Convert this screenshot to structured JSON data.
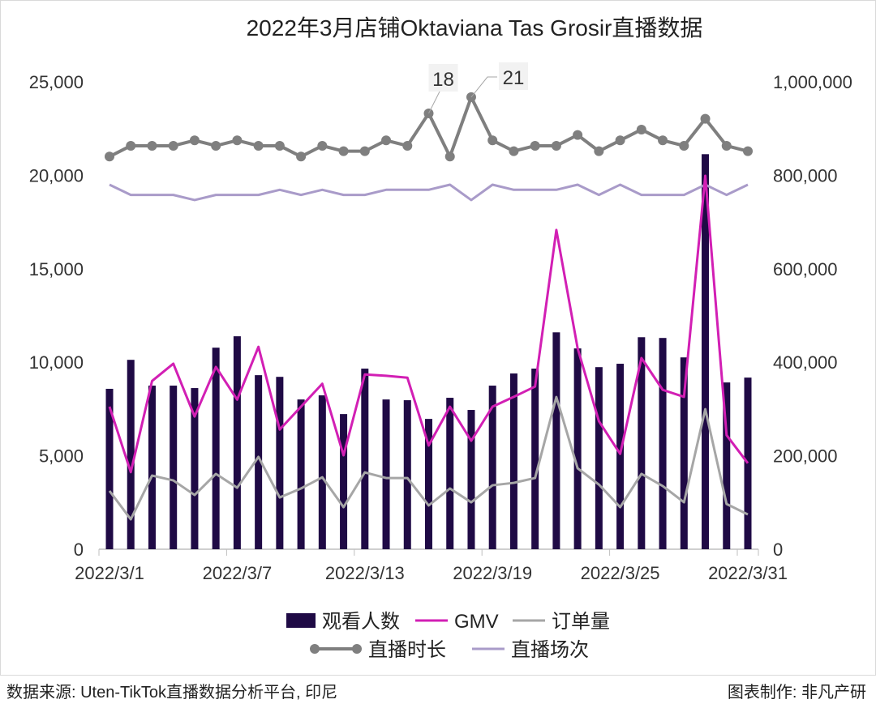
{
  "chart_data": {
    "type": "bar+line",
    "title": "2022年3月店铺Oktaviana Tas Grosir直播数据",
    "x": [
      "2022/3/1",
      "2022/3/2",
      "2022/3/3",
      "2022/3/4",
      "2022/3/5",
      "2022/3/6",
      "2022/3/7",
      "2022/3/8",
      "2022/3/9",
      "2022/3/10",
      "2022/3/11",
      "2022/3/12",
      "2022/3/13",
      "2022/3/14",
      "2022/3/15",
      "2022/3/16",
      "2022/3/17",
      "2022/3/18",
      "2022/3/19",
      "2022/3/20",
      "2022/3/21",
      "2022/3/22",
      "2022/3/23",
      "2022/3/24",
      "2022/3/25",
      "2022/3/26",
      "2022/3/27",
      "2022/3/28",
      "2022/3/29",
      "2022/3/30",
      "2022/3/31"
    ],
    "x_tick_labels": [
      "2022/3/1",
      "2022/3/7",
      "2022/3/13",
      "2022/3/19",
      "2022/3/25",
      "2022/3/31"
    ],
    "y_left": {
      "range": [
        0,
        25000
      ],
      "ticks": [
        "0",
        "5,000",
        "10,000",
        "15,000",
        "20,000",
        "25,000"
      ]
    },
    "y_right": {
      "range": [
        0,
        1000000
      ],
      "ticks": [
        "0",
        "200,000",
        "400,000",
        "600,000",
        "800,000",
        "1,000,000"
      ]
    },
    "series": [
      {
        "name": "观看人数",
        "type": "bar",
        "axis": "left",
        "color": "#1f0a45",
        "values": [
          8580,
          10130,
          8750,
          8750,
          8620,
          10780,
          11390,
          9310,
          9220,
          8010,
          8230,
          7230,
          9660,
          8010,
          7970,
          6970,
          8100,
          7450,
          8750,
          9400,
          9660,
          11600,
          10740,
          9740,
          9920,
          11340,
          11300,
          10260,
          21130,
          8920,
          9180
        ]
      },
      {
        "name": "GMV",
        "type": "line",
        "axis": "right",
        "color": "#d21fb4",
        "values": [
          305000,
          165000,
          360000,
          397000,
          284000,
          390000,
          320000,
          433000,
          256000,
          305000,
          354000,
          201000,
          374000,
          371000,
          367000,
          222000,
          305000,
          232000,
          305000,
          326000,
          348000,
          683000,
          430000,
          274000,
          204000,
          409000,
          341000,
          326000,
          799000,
          244000,
          184000
        ]
      },
      {
        "name": "订单量",
        "type": "line",
        "axis": "left",
        "color": "#a6a6a6",
        "values": [
          3120,
          1600,
          3940,
          3680,
          2900,
          4030,
          3290,
          4940,
          2770,
          3250,
          3850,
          2250,
          4110,
          3810,
          3810,
          2340,
          3250,
          2510,
          3420,
          3550,
          3810,
          8140,
          4330,
          3460,
          2250,
          4030,
          3380,
          2510,
          7490,
          2420,
          1860
        ]
      },
      {
        "name": "直播时长",
        "type": "line-marker",
        "axis": "hidden",
        "color": "#7f7f7f",
        "values": [
          10,
          12,
          12,
          12,
          13,
          12,
          13,
          12,
          12,
          10,
          12,
          11,
          11,
          13,
          12,
          18,
          10,
          21,
          13,
          11,
          12,
          12,
          14,
          11,
          13,
          15,
          13,
          12,
          17,
          12,
          11
        ],
        "data_labels": [
          {
            "x": "2022/3/16",
            "text": "18"
          },
          {
            "x": "2022/3/18",
            "text": "21"
          }
        ]
      },
      {
        "name": "直播场次",
        "type": "line",
        "axis": "hidden",
        "color": "#a99bc9",
        "values": [
          4,
          2,
          2,
          2,
          1,
          2,
          2,
          2,
          3,
          2,
          3,
          2,
          2,
          3,
          3,
          3,
          4,
          1,
          4,
          3,
          3,
          3,
          4,
          2,
          4,
          2,
          2,
          2,
          4,
          2,
          4
        ]
      }
    ],
    "legend": "bottom",
    "grid": false
  },
  "footer": {
    "source": "数据来源: Uten-TikTok直播数据分析平台, 印尼",
    "credit": "图表制作: 非凡产研"
  }
}
